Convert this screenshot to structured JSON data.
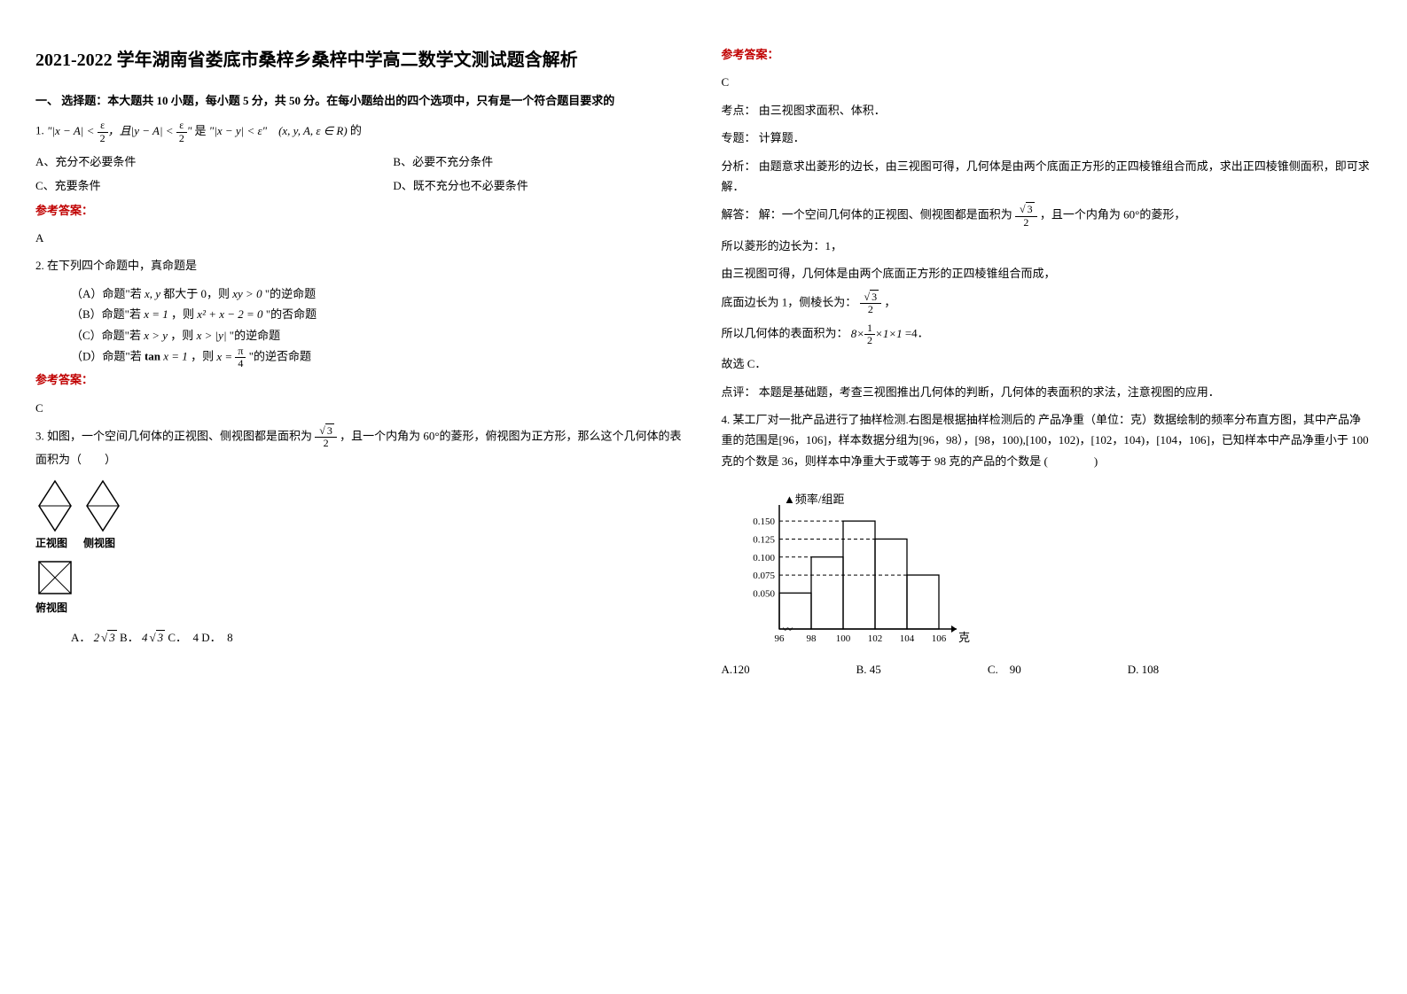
{
  "title": "2021-2022 学年湖南省娄底市桑梓乡桑梓中学高二数学文测试题含解析",
  "section1": "一、 选择题：本大题共 10 小题，每小题 5 分，共 50 分。在每小题给出的四个选项中，只有是一个符合题目要求的",
  "q1": {
    "num": "1.",
    "stem_suffix": "的",
    "optA": "A、充分不必要条件",
    "optB": "B、必要不充分条件",
    "optC": "C、充要条件",
    "optD": "D、既不充分也不必要条件",
    "ans_label": "参考答案：",
    "ans": "A"
  },
  "q2": {
    "num": "2.",
    "stem": "在下列四个命题中，真命题是",
    "optA_pre": "（A）命题\"若",
    "optA_mid": "都大于 0，则",
    "optA_post": "\"的逆命题",
    "optB_pre": "（B）命题\"若",
    "optB_mid": "，则",
    "optB_post": "\"的否命题",
    "optC_pre": "（C）命题\"若",
    "optC_mid": "，则",
    "optC_post": "\"的逆命题",
    "optD_pre": "（D）命题\"若",
    "optD_mid": "，则",
    "optD_post": "\"的逆否命题",
    "ans_label": "参考答案：",
    "ans": "C"
  },
  "q3": {
    "num": "3.",
    "stem_pre": "如图，一个空间几何体的正视图、侧视图都是面积为",
    "stem_post": "，且一个内角为 60°的菱形，俯视图为正方形，那么这个几何体的表面积为（　　）",
    "view1": "正视图",
    "view2": "侧视图",
    "view3": "俯视图",
    "optA": "A．",
    "optAv": "2√3",
    "optB": " B．",
    "optBv": "4√3",
    "optC": " C．　4",
    "optD": " D．　8",
    "ans_label": "参考答案：",
    "ans": "C",
    "kd_label": "考点：",
    "kd": "由三视图求面积、体积．",
    "zt_label": "专题：",
    "zt": "计算题．",
    "fx_label": "分析：",
    "fx": "由题意求出菱形的边长，由三视图可得，几何体是由两个底面正方形的正四棱锥组合而成，求出正四棱锥侧面积，即可求解．",
    "jd_label": "解答：",
    "jd_pre": "解：一个空间几何体的正视图、侧视图都是面积为",
    "jd_post": "，且一个内角为 60°的菱形，",
    "jd_l2": "所以菱形的边长为：1，",
    "jd_l3": "由三视图可得，几何体是由两个底面正方形的正四棱锥组合而成，",
    "jd_l4_pre": "底面边长为 1，侧棱长为：",
    "jd_l4_post": "，",
    "jd_l5_pre": "所以几何体的表面积为：",
    "jd_l5_post": "=4．",
    "jd_l6": "故选 C．",
    "dp_label": "点评：",
    "dp": "本题是基础题，考查三视图推出几何体的判断，几何体的表面积的求法，注意视图的应用．"
  },
  "q4": {
    "num": "4.",
    "stem": "某工厂对一批产品进行了抽样检测.右图是根据抽样检测后的 产品净重（单位：克）数据绘制的频率分布直方图，其中产品净重的范围是[96，106]，样本数据分组为[96，98），[98，100),[100，102)，[102，104)，[104，106]，已知样本中产品净重小于 100 克的个数是 36，则样本中净重大于或等于 98 克的产品的个数是 (　　　　)",
    "ylabel": "频率/组距",
    "xlabel": "克",
    "yticks": [
      "0.050",
      "0.075",
      "0.100",
      "0.125",
      "0.150"
    ],
    "xticks": [
      "96",
      "98",
      "100",
      "102",
      "104",
      "106"
    ],
    "bars": [
      0.05,
      0.1,
      0.15,
      0.125,
      0.075
    ],
    "optA": "A.120",
    "optB": "B. 45",
    "optC": "C.　90",
    "optD": "D. 108"
  },
  "colors": {
    "text": "#000000",
    "red": "#c00000",
    "bg": "#ffffff",
    "axis": "#000000",
    "dash": "#000000"
  }
}
